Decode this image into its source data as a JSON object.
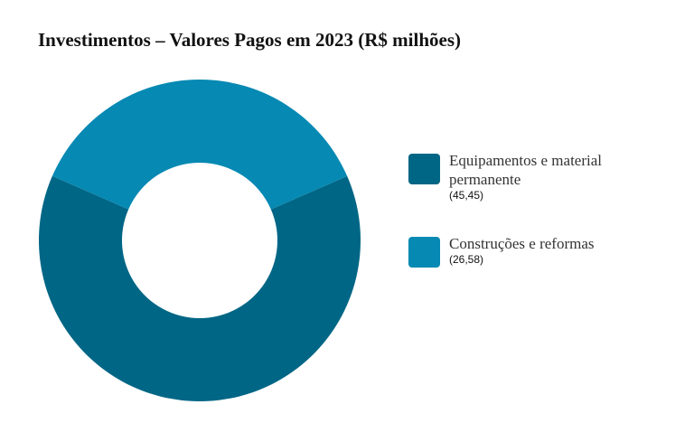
{
  "chart_data": {
    "type": "donut",
    "title": "Investimentos – Valores Pagos em 2023 (R$ milhões)",
    "categories": [
      "Equipamentos e material permanente",
      "Construções e reformas"
    ],
    "values": [
      45.45,
      26.58
    ],
    "value_labels": [
      "(45,45)",
      "(26,58)"
    ],
    "colors": [
      "#006685",
      "#0689b3"
    ]
  }
}
